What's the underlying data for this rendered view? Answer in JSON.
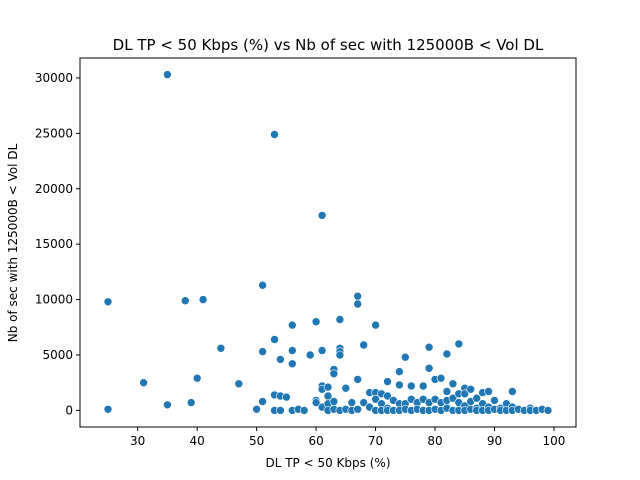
{
  "chart_data": {
    "type": "scatter",
    "title": "DL TP < 50 Kbps (%) vs Nb of sec with 125000B < Vol DL",
    "xlabel": "DL TP < 50 Kbps (%)",
    "ylabel": "Nb of sec with 125000B < Vol DL",
    "xlim": [
      20.3,
      103.7
    ],
    "ylim": [
      -1500,
      31800
    ],
    "xticks": [
      30,
      40,
      50,
      60,
      70,
      80,
      90,
      100
    ],
    "yticks": [
      0,
      5000,
      10000,
      15000,
      20000,
      25000,
      30000
    ],
    "grid": false,
    "color": "#1f77b4",
    "points": [
      {
        "x": 25,
        "y": 9800
      },
      {
        "x": 25,
        "y": 100
      },
      {
        "x": 31,
        "y": 2500
      },
      {
        "x": 35,
        "y": 30300
      },
      {
        "x": 35,
        "y": 500
      },
      {
        "x": 38,
        "y": 9900
      },
      {
        "x": 39,
        "y": 700
      },
      {
        "x": 40,
        "y": 2900
      },
      {
        "x": 41,
        "y": 10000
      },
      {
        "x": 44,
        "y": 5600
      },
      {
        "x": 47,
        "y": 2400
      },
      {
        "x": 50,
        "y": 100
      },
      {
        "x": 51,
        "y": 11300
      },
      {
        "x": 51,
        "y": 5300
      },
      {
        "x": 51,
        "y": 800
      },
      {
        "x": 53,
        "y": 24900
      },
      {
        "x": 53,
        "y": 6400
      },
      {
        "x": 53,
        "y": 1400
      },
      {
        "x": 53,
        "y": 0
      },
      {
        "x": 54,
        "y": 4600
      },
      {
        "x": 54,
        "y": 1300
      },
      {
        "x": 54,
        "y": 0
      },
      {
        "x": 55,
        "y": 1200
      },
      {
        "x": 56,
        "y": 7700
      },
      {
        "x": 56,
        "y": 5400
      },
      {
        "x": 56,
        "y": 4200
      },
      {
        "x": 56,
        "y": 0
      },
      {
        "x": 57,
        "y": 100
      },
      {
        "x": 58,
        "y": 0
      },
      {
        "x": 59,
        "y": 5000
      },
      {
        "x": 60,
        "y": 8000
      },
      {
        "x": 60,
        "y": 900
      },
      {
        "x": 60,
        "y": 700
      },
      {
        "x": 61,
        "y": 17600
      },
      {
        "x": 61,
        "y": 5400
      },
      {
        "x": 61,
        "y": 2200
      },
      {
        "x": 61,
        "y": 1900
      },
      {
        "x": 61,
        "y": 300
      },
      {
        "x": 62,
        "y": 2100
      },
      {
        "x": 62,
        "y": 1300
      },
      {
        "x": 62,
        "y": 600
      },
      {
        "x": 62,
        "y": 0
      },
      {
        "x": 63,
        "y": 3700
      },
      {
        "x": 63,
        "y": 3300
      },
      {
        "x": 63,
        "y": 800
      },
      {
        "x": 63,
        "y": 100
      },
      {
        "x": 64,
        "y": 8200
      },
      {
        "x": 64,
        "y": 5600
      },
      {
        "x": 64,
        "y": 5300
      },
      {
        "x": 64,
        "y": 5000
      },
      {
        "x": 64,
        "y": 0
      },
      {
        "x": 65,
        "y": 2000
      },
      {
        "x": 65,
        "y": 100
      },
      {
        "x": 66,
        "y": 700
      },
      {
        "x": 66,
        "y": 0
      },
      {
        "x": 67,
        "y": 10300
      },
      {
        "x": 67,
        "y": 9600
      },
      {
        "x": 67,
        "y": 2800
      },
      {
        "x": 67,
        "y": 100
      },
      {
        "x": 68,
        "y": 5900
      },
      {
        "x": 68,
        "y": 700
      },
      {
        "x": 69,
        "y": 1600
      },
      {
        "x": 69,
        "y": 300
      },
      {
        "x": 70,
        "y": 7700
      },
      {
        "x": 70,
        "y": 1600
      },
      {
        "x": 70,
        "y": 1000
      },
      {
        "x": 70,
        "y": 0
      },
      {
        "x": 71,
        "y": 1500
      },
      {
        "x": 71,
        "y": 600
      },
      {
        "x": 71,
        "y": 0
      },
      {
        "x": 72,
        "y": 2600
      },
      {
        "x": 72,
        "y": 1300
      },
      {
        "x": 72,
        "y": 200
      },
      {
        "x": 72,
        "y": 0
      },
      {
        "x": 73,
        "y": 900
      },
      {
        "x": 73,
        "y": 0
      },
      {
        "x": 74,
        "y": 3500
      },
      {
        "x": 74,
        "y": 2300
      },
      {
        "x": 74,
        "y": 600
      },
      {
        "x": 74,
        "y": 0
      },
      {
        "x": 75,
        "y": 4800
      },
      {
        "x": 75,
        "y": 600
      },
      {
        "x": 75,
        "y": 100
      },
      {
        "x": 76,
        "y": 2200
      },
      {
        "x": 76,
        "y": 1000
      },
      {
        "x": 76,
        "y": 0
      },
      {
        "x": 77,
        "y": 700
      },
      {
        "x": 77,
        "y": 100
      },
      {
        "x": 78,
        "y": 2200
      },
      {
        "x": 78,
        "y": 1000
      },
      {
        "x": 78,
        "y": 0
      },
      {
        "x": 79,
        "y": 5700
      },
      {
        "x": 79,
        "y": 3800
      },
      {
        "x": 79,
        "y": 700
      },
      {
        "x": 79,
        "y": 0
      },
      {
        "x": 80,
        "y": 2800
      },
      {
        "x": 80,
        "y": 1000
      },
      {
        "x": 80,
        "y": 100
      },
      {
        "x": 81,
        "y": 2900
      },
      {
        "x": 81,
        "y": 700
      },
      {
        "x": 81,
        "y": 0
      },
      {
        "x": 82,
        "y": 5100
      },
      {
        "x": 82,
        "y": 1700
      },
      {
        "x": 82,
        "y": 900
      },
      {
        "x": 82,
        "y": 200
      },
      {
        "x": 83,
        "y": 2400
      },
      {
        "x": 83,
        "y": 1100
      },
      {
        "x": 83,
        "y": 0
      },
      {
        "x": 84,
        "y": 6000
      },
      {
        "x": 84,
        "y": 1500
      },
      {
        "x": 84,
        "y": 700
      },
      {
        "x": 84,
        "y": 0
      },
      {
        "x": 85,
        "y": 2000
      },
      {
        "x": 85,
        "y": 1500
      },
      {
        "x": 85,
        "y": 400
      },
      {
        "x": 85,
        "y": 0
      },
      {
        "x": 86,
        "y": 1900
      },
      {
        "x": 86,
        "y": 800
      },
      {
        "x": 86,
        "y": 100
      },
      {
        "x": 87,
        "y": 1100
      },
      {
        "x": 87,
        "y": 200
      },
      {
        "x": 87,
        "y": 0
      },
      {
        "x": 88,
        "y": 1600
      },
      {
        "x": 88,
        "y": 600
      },
      {
        "x": 88,
        "y": 0
      },
      {
        "x": 89,
        "y": 1700
      },
      {
        "x": 89,
        "y": 300
      },
      {
        "x": 89,
        "y": 0
      },
      {
        "x": 90,
        "y": 900
      },
      {
        "x": 90,
        "y": 100
      },
      {
        "x": 91,
        "y": 200
      },
      {
        "x": 91,
        "y": 0
      },
      {
        "x": 92,
        "y": 600
      },
      {
        "x": 92,
        "y": 0
      },
      {
        "x": 93,
        "y": 1700
      },
      {
        "x": 93,
        "y": 300
      },
      {
        "x": 93,
        "y": 0
      },
      {
        "x": 94,
        "y": 100
      },
      {
        "x": 95,
        "y": 0
      },
      {
        "x": 96,
        "y": 200
      },
      {
        "x": 96,
        "y": 0
      },
      {
        "x": 97,
        "y": 0
      },
      {
        "x": 98,
        "y": 100
      },
      {
        "x": 99,
        "y": 0
      }
    ]
  }
}
